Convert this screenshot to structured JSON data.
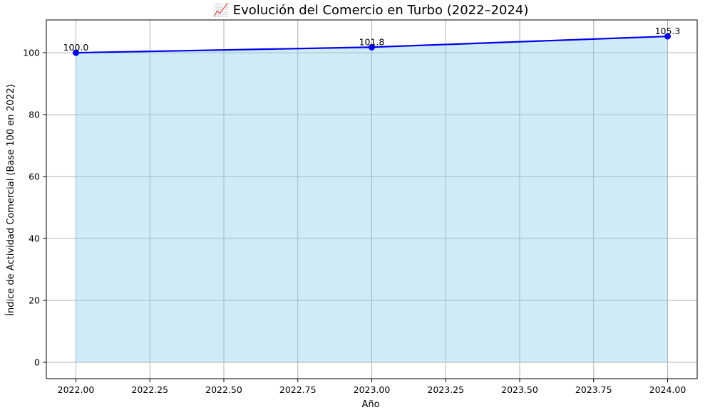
{
  "chart_data": {
    "type": "line",
    "title": "📈 Evolución del Comercio en Turbo (2022–2024)",
    "xlabel": "Año",
    "ylabel": "Índice de Actividad Comercial (Base 100 en 2022)",
    "x": [
      2022,
      2023,
      2024
    ],
    "series": [
      {
        "values": [
          100.0,
          101.8,
          105.3
        ],
        "labels": [
          "100.0",
          "101.8",
          "105.3"
        ],
        "color": "#0000ee",
        "fill_color": "#87ceeb",
        "fill": true
      }
    ],
    "xlim": [
      2021.9,
      2024.1
    ],
    "ylim": [
      -5.3,
      110.6
    ],
    "xticks": [
      2022.0,
      2022.25,
      2022.5,
      2022.75,
      2023.0,
      2023.25,
      2023.5,
      2023.75,
      2024.0
    ],
    "xtick_labels": [
      "2022.00",
      "2022.25",
      "2022.50",
      "2022.75",
      "2023.00",
      "2023.25",
      "2023.50",
      "2023.75",
      "2024.00"
    ],
    "yticks": [
      0,
      20,
      40,
      60,
      80,
      100
    ],
    "ytick_labels": [
      "0",
      "20",
      "40",
      "60",
      "80",
      "100"
    ],
    "grid": true,
    "legend": null
  }
}
